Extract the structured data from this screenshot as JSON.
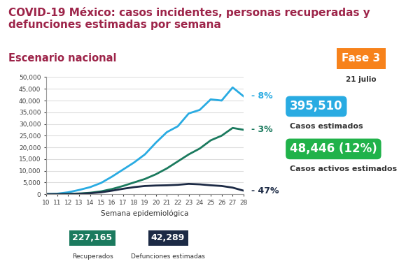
{
  "chart_data": {
    "type": "line",
    "title": "COVID-19 México: casos incidentes, personas recuperadas y defunciones estimadas por semana",
    "subtitle": "Escenario nacional",
    "x_label": "Semana epidemiológica",
    "x": [
      10,
      11,
      12,
      13,
      14,
      15,
      16,
      17,
      18,
      19,
      20,
      21,
      22,
      23,
      24,
      25,
      26,
      27,
      28
    ],
    "xlim": [
      10,
      28
    ],
    "xticks": [
      10,
      11,
      12,
      13,
      14,
      15,
      16,
      17,
      18,
      19,
      20,
      21,
      22,
      23,
      24,
      25,
      26,
      27,
      28
    ],
    "ylim": [
      0,
      50000
    ],
    "yticks": [
      {
        "value": 0,
        "label": "0"
      },
      {
        "value": 5000,
        "label": "5,000"
      },
      {
        "value": 10000,
        "label": "10,000"
      },
      {
        "value": 15000,
        "label": "15,000"
      },
      {
        "value": 20000,
        "label": "20,000"
      },
      {
        "value": 25000,
        "label": "25,000"
      },
      {
        "value": 30000,
        "label": "30,000"
      },
      {
        "value": 35000,
        "label": "35,000"
      },
      {
        "value": 40000,
        "label": "40,000"
      },
      {
        "value": 45000,
        "label": "45,000"
      },
      {
        "value": 50000,
        "label": "50,000"
      }
    ],
    "grid": true,
    "series": [
      {
        "color": "#29abe2",
        "end_label": "- 8%",
        "values": [
          0,
          200,
          800,
          1800,
          3000,
          4800,
          7500,
          10500,
          13500,
          17000,
          22000,
          26500,
          29000,
          34500,
          36000,
          40500,
          40000,
          45600,
          41800
        ]
      },
      {
        "color": "#1b7a5e",
        "end_label": "- 3%",
        "values": [
          0,
          0,
          100,
          300,
          600,
          1200,
          2200,
          3500,
          5000,
          6500,
          8500,
          11000,
          14000,
          17000,
          19500,
          23000,
          25000,
          28300,
          27500
        ]
      },
      {
        "color": "#1c2a45",
        "end_label": "- 47%",
        "values": [
          0,
          0,
          50,
          150,
          400,
          800,
          1500,
          2300,
          3000,
          3500,
          3700,
          3800,
          4000,
          4400,
          4200,
          3800,
          3500,
          2800,
          1500
        ]
      }
    ],
    "phase": {
      "label": "Fase 3",
      "date": "21 julio",
      "color": "#f7821b"
    },
    "side_boxes": [
      {
        "value": "395,510",
        "label": "Casos estimados",
        "color": "#29abe2"
      },
      {
        "value": "48,446 (12%)",
        "label": "Casos activos estimados",
        "color": "#20b24a"
      }
    ],
    "bottom_boxes": [
      {
        "value": "227,165",
        "label": "Recuperados",
        "color": "#1b7a5e"
      },
      {
        "value": "42,289",
        "label": "Defunciones estimadas",
        "color": "#1c2a45"
      }
    ]
  }
}
